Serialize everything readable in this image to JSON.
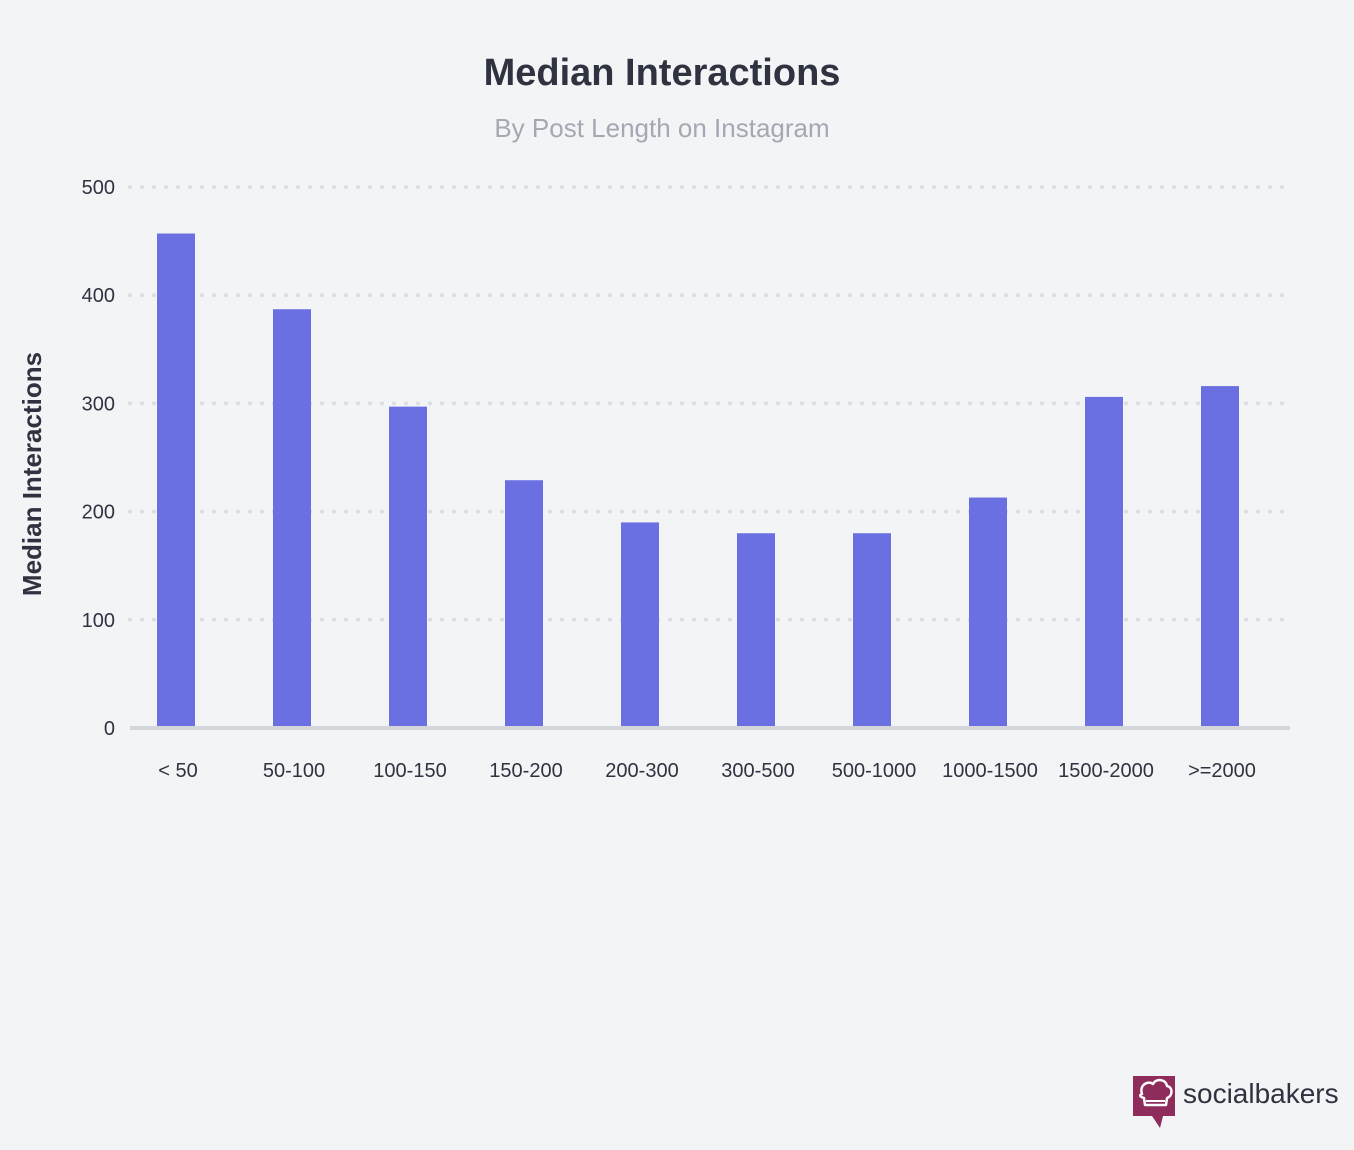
{
  "chart_data": {
    "type": "bar",
    "title": "Median Interactions",
    "subtitle": "By Post Length on Instagram",
    "xlabel": "",
    "ylabel": "Median Interactions",
    "categories": [
      "< 50",
      "50-100",
      "100-150",
      "150-200",
      "200-300",
      "300-500",
      "500-1000",
      "1000-1500",
      "1500-2000",
      ">=2000"
    ],
    "values": [
      457,
      387,
      297,
      229,
      190,
      180,
      180,
      213,
      306,
      316
    ],
    "ylim": [
      0,
      500
    ],
    "yticks": [
      0,
      100,
      200,
      300,
      400,
      500
    ],
    "grid": true,
    "bar_color": "#6a6fe2",
    "grid_color": "#dcdde1",
    "axis_color": "#d4d6db"
  },
  "brand": {
    "name": "socialbakers",
    "logo_icon": "chef-hat-speech-bubble-icon",
    "logo_color": "#8e2c5c"
  }
}
